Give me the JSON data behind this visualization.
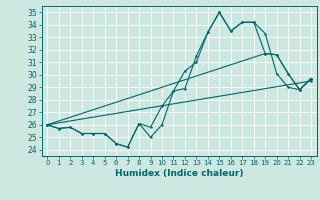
{
  "title": "",
  "xlabel": "Humidex (Indice chaleur)",
  "bg_color": "#cce8e0",
  "line_color": "#006666",
  "grid_color": "#b0d8d0",
  "xlim": [
    -0.5,
    23.5
  ],
  "ylim": [
    23.5,
    35.5
  ],
  "yticks": [
    24,
    25,
    26,
    27,
    28,
    29,
    30,
    31,
    32,
    33,
    34,
    35
  ],
  "xticks": [
    0,
    1,
    2,
    3,
    4,
    5,
    6,
    7,
    8,
    9,
    10,
    11,
    12,
    13,
    14,
    15,
    16,
    17,
    18,
    19,
    20,
    21,
    22,
    23
  ],
  "series1_x": [
    0,
    1,
    2,
    3,
    4,
    5,
    6,
    7,
    8,
    9,
    10,
    11,
    12,
    13,
    14,
    15,
    16,
    17,
    18,
    19,
    20,
    21,
    22,
    23
  ],
  "series1_y": [
    26.0,
    25.7,
    25.8,
    25.3,
    25.3,
    25.3,
    24.5,
    24.2,
    26.1,
    25.0,
    26.0,
    28.7,
    28.9,
    31.5,
    33.4,
    35.0,
    33.5,
    34.2,
    34.2,
    33.3,
    30.1,
    29.0,
    28.8,
    29.7
  ],
  "series2_x": [
    0,
    1,
    2,
    3,
    4,
    5,
    6,
    7,
    8,
    9,
    10,
    11,
    12,
    13,
    14,
    15,
    16,
    17,
    18,
    19,
    20,
    21,
    22,
    23
  ],
  "series2_y": [
    26.0,
    25.7,
    25.8,
    25.3,
    25.3,
    25.3,
    24.5,
    24.2,
    26.1,
    25.8,
    27.5,
    28.7,
    30.3,
    31.0,
    33.4,
    35.0,
    33.5,
    34.2,
    34.2,
    31.7,
    31.6,
    30.1,
    28.8,
    29.7
  ],
  "series3_x": [
    0,
    23
  ],
  "series3_y": [
    26.0,
    29.5
  ],
  "series4_x": [
    0,
    19,
    20,
    21,
    22,
    23
  ],
  "series4_y": [
    26.0,
    31.7,
    31.6,
    30.1,
    28.8,
    29.7
  ]
}
